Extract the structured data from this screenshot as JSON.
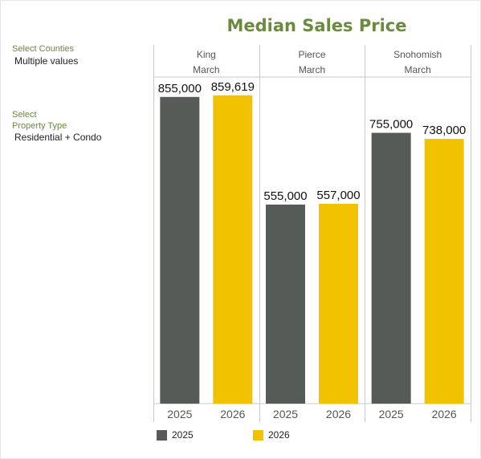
{
  "filters": {
    "counties_label": "Select Counties",
    "counties_value": "Multiple values",
    "property_label_line1": "Select",
    "property_label_line2": "Property Type",
    "property_value": "Residential + Condo"
  },
  "chart_data": {
    "type": "bar",
    "title": "Median Sales Price",
    "grid": false,
    "ylim": [
      0,
      1000000
    ],
    "panels": [
      {
        "county": "King",
        "month": "March",
        "values": [
          855000,
          859619
        ],
        "labels": [
          "855,000",
          "859,619"
        ]
      },
      {
        "county": "Pierce",
        "month": "March",
        "values": [
          555000,
          557000
        ],
        "labels": [
          "555,000",
          "557,000"
        ]
      },
      {
        "county": "Snohomish",
        "month": "March",
        "values": [
          755000,
          738000
        ],
        "labels": [
          "755,000",
          "738,000"
        ]
      }
    ],
    "categories": [
      "2025",
      "2026"
    ],
    "series": [
      {
        "name": "2025",
        "color": "#555c57"
      },
      {
        "name": "2026",
        "color": "#f0c200"
      }
    ],
    "legend_position": "bottom"
  }
}
